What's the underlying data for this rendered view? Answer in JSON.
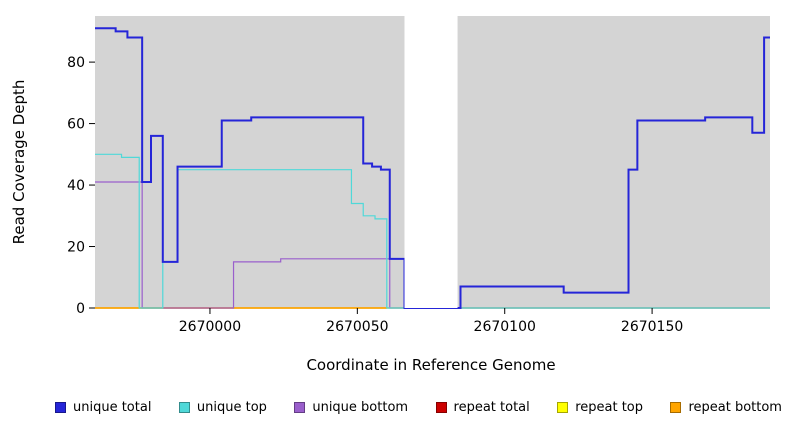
{
  "chart_data": {
    "type": "line",
    "title": "",
    "xlabel": "Coordinate in Reference Genome",
    "ylabel": "Read Coverage Depth",
    "xlim": [
      2669961,
      2670190
    ],
    "ylim": [
      0,
      95
    ],
    "xticks": [
      2670000,
      2670050,
      2670100,
      2670150
    ],
    "yticks": [
      0,
      20,
      40,
      60,
      80
    ],
    "plot_bg": "#d4d4d4",
    "gap_region": [
      2670066,
      2670084
    ],
    "grid": false,
    "legend_position": "bottom",
    "series": [
      {
        "name": "repeat total",
        "color": "#cc0000",
        "lw": 1.2,
        "end": 2670190,
        "points": [
          [
            2669961,
            0
          ]
        ]
      },
      {
        "name": "repeat top",
        "color": "#ffff00",
        "lw": 1.2,
        "end": 2670190,
        "points": [
          [
            2669961,
            0
          ]
        ]
      },
      {
        "name": "repeat bottom",
        "color": "#ffa500",
        "lw": 1.4,
        "end": 2670060,
        "points": [
          [
            2669961,
            0
          ]
        ]
      },
      {
        "name": "unique bottom",
        "color": "#9a5fcc",
        "lw": 1.2,
        "end": 2670190,
        "points": [
          [
            2669961,
            41
          ],
          [
            2669977,
            0
          ],
          [
            2670008,
            15
          ],
          [
            2670024,
            16
          ],
          [
            2670061,
            0
          ]
        ]
      },
      {
        "name": "unique top",
        "color": "#4fd8d8",
        "lw": 1.2,
        "end": 2670190,
        "points": [
          [
            2669961,
            50
          ],
          [
            2669970,
            49
          ],
          [
            2669976,
            0
          ],
          [
            2669984,
            15
          ],
          [
            2669989,
            45
          ],
          [
            2670048,
            34
          ],
          [
            2670052,
            30
          ],
          [
            2670056,
            29
          ],
          [
            2670060,
            0
          ]
        ]
      },
      {
        "name": "unique total",
        "color": "#2525d8",
        "lw": 2,
        "end": 2670190,
        "points": [
          [
            2669961,
            91
          ],
          [
            2669968,
            90
          ],
          [
            2669972,
            88
          ],
          [
            2669977,
            41
          ],
          [
            2669980,
            56
          ],
          [
            2669984,
            15
          ],
          [
            2669989,
            46
          ],
          [
            2670004,
            61
          ],
          [
            2670014,
            62
          ],
          [
            2670052,
            47
          ],
          [
            2670055,
            46
          ],
          [
            2670058,
            45
          ],
          [
            2670061,
            16
          ],
          [
            2670066,
            0
          ],
          [
            2670085,
            7
          ],
          [
            2670120,
            5
          ],
          [
            2670142,
            45
          ],
          [
            2670145,
            61
          ],
          [
            2670168,
            62
          ],
          [
            2670184,
            57
          ],
          [
            2670188,
            88
          ]
        ]
      }
    ]
  },
  "legend": {
    "items": [
      {
        "label": "unique total",
        "color": "#2525d8"
      },
      {
        "label": "unique top",
        "color": "#4fd8d8"
      },
      {
        "label": "unique bottom",
        "color": "#9a5fcc"
      },
      {
        "label": "repeat total",
        "color": "#cc0000"
      },
      {
        "label": "repeat top",
        "color": "#ffff00"
      },
      {
        "label": "repeat bottom",
        "color": "#ffa500"
      }
    ]
  }
}
